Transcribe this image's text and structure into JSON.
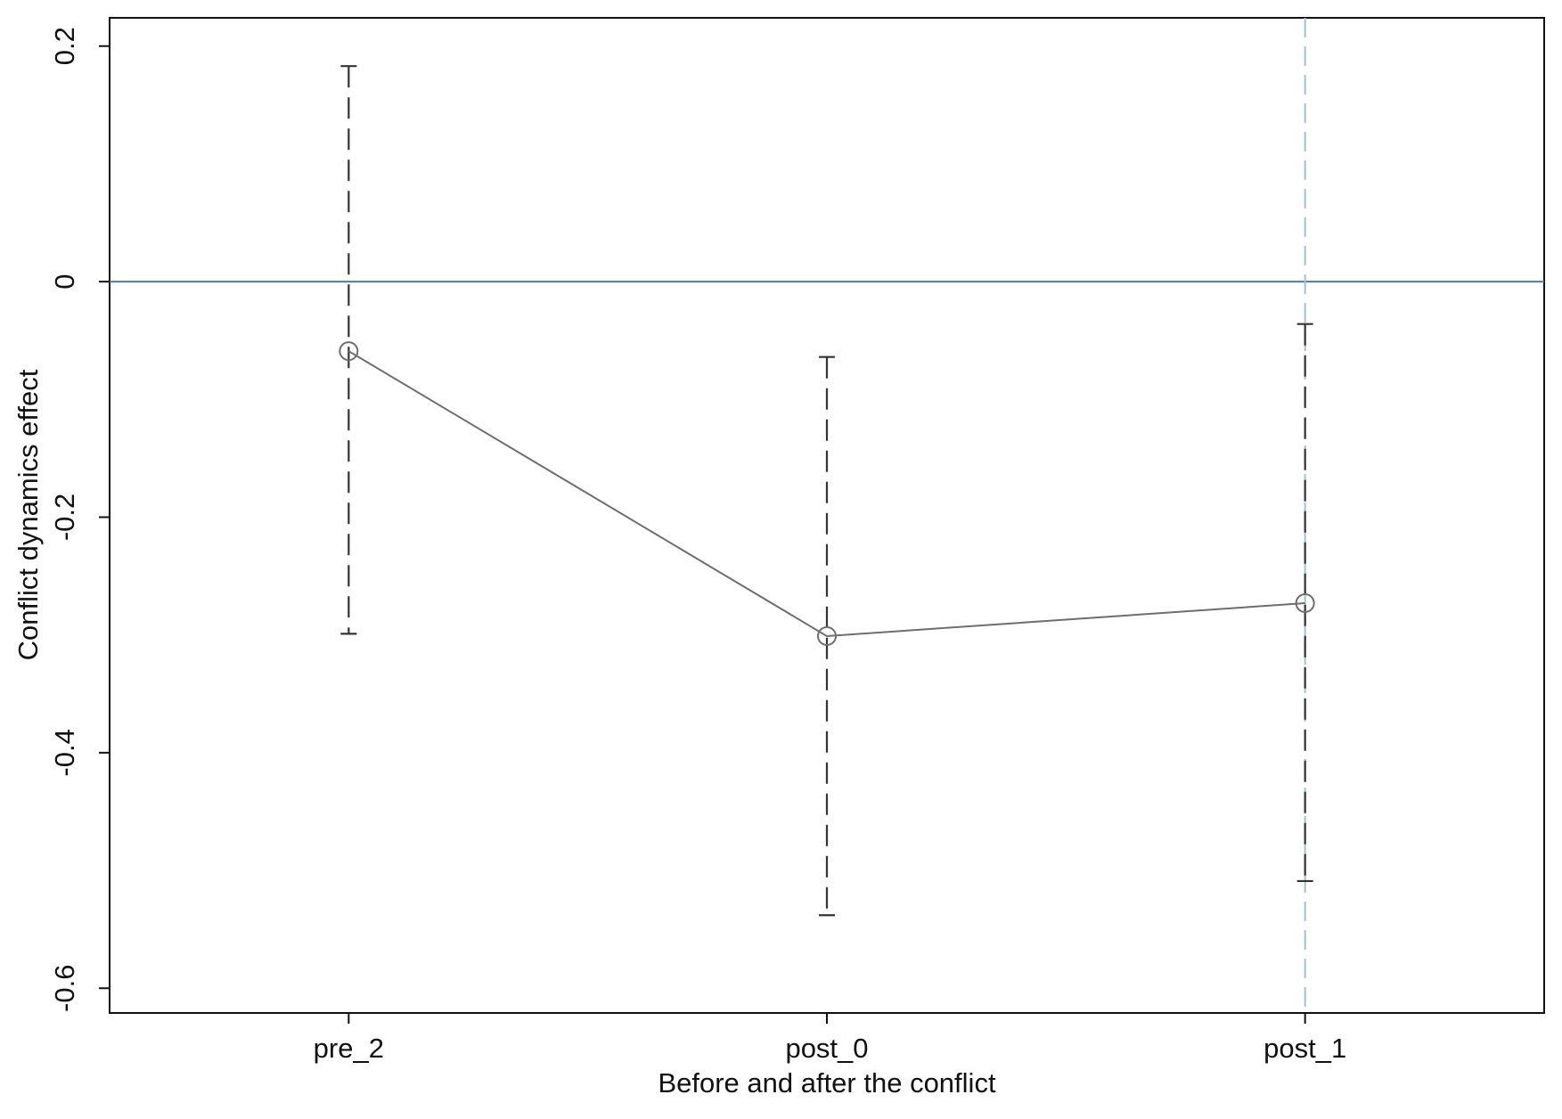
{
  "chart_data": {
    "type": "line",
    "x_label": "Before and after the conflict",
    "y_label": "Conflict dynamics effect",
    "categories": [
      "pre_2",
      "post_0",
      "post_1"
    ],
    "series": [
      {
        "color": "#6e6e6e",
        "values": [
          -0.059,
          -0.301,
          -0.273
        ],
        "lower": [
          -0.299,
          -0.538,
          -0.509
        ],
        "upper": [
          0.183,
          -0.064,
          -0.036
        ]
      }
    ],
    "ylim": [
      -0.621,
      0.224
    ],
    "yticks": [
      -0.6,
      -0.4,
      -0.2,
      0,
      0.2
    ],
    "hline": 0,
    "hline_color": "#4a7ca8",
    "vline": "post_1",
    "vline_color": "#9fc3c8",
    "errorbar_color": "#333333"
  }
}
